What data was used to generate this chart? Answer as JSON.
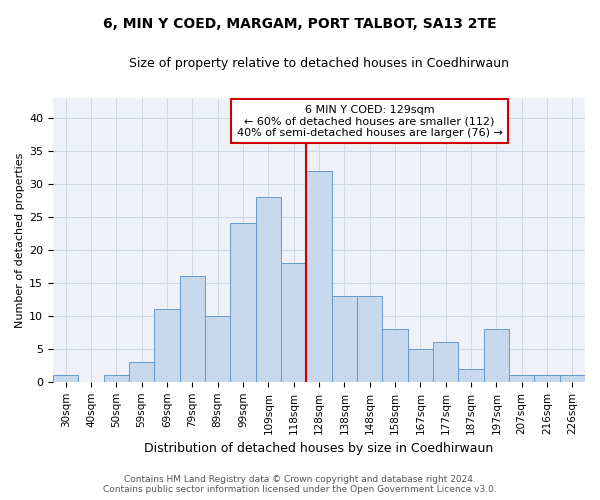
{
  "title1": "6, MIN Y COED, MARGAM, PORT TALBOT, SA13 2TE",
  "title2": "Size of property relative to detached houses in Coedhirwaun",
  "xlabel": "Distribution of detached houses by size in Coedhirwaun",
  "ylabel": "Number of detached properties",
  "footnote1": "Contains HM Land Registry data © Crown copyright and database right 2024.",
  "footnote2": "Contains public sector information licensed under the Open Government Licence v3.0.",
  "categories": [
    "30sqm",
    "40sqm",
    "50sqm",
    "59sqm",
    "69sqm",
    "79sqm",
    "89sqm",
    "99sqm",
    "109sqm",
    "118sqm",
    "128sqm",
    "138sqm",
    "148sqm",
    "158sqm",
    "167sqm",
    "177sqm",
    "187sqm",
    "197sqm",
    "207sqm",
    "216sqm",
    "226sqm"
  ],
  "values": [
    1,
    0,
    1,
    3,
    11,
    16,
    10,
    24,
    28,
    18,
    32,
    13,
    13,
    8,
    5,
    6,
    2,
    8,
    1,
    1,
    1
  ],
  "bar_color": "#c8d9ed",
  "bar_edge_color": "#6699cc",
  "vline_index": 10,
  "vline_color": "#cc0000",
  "box_edge_color": "#cc0000",
  "annotation_line1": "6 MIN Y COED: 129sqm",
  "annotation_line2": "← 60% of detached houses are smaller (112)",
  "annotation_line3": "40% of semi-detached houses are larger (76) →",
  "ylim": [
    0,
    43
  ],
  "yticks": [
    0,
    5,
    10,
    15,
    20,
    25,
    30,
    35,
    40
  ],
  "grid_color": "#d0d8e8",
  "bg_color": "#eef2f8",
  "title1_fontsize": 10,
  "title2_fontsize": 9,
  "xlabel_fontsize": 9,
  "ylabel_fontsize": 8,
  "tick_fontsize": 7.5,
  "annot_fontsize": 8,
  "footnote_fontsize": 6.5
}
